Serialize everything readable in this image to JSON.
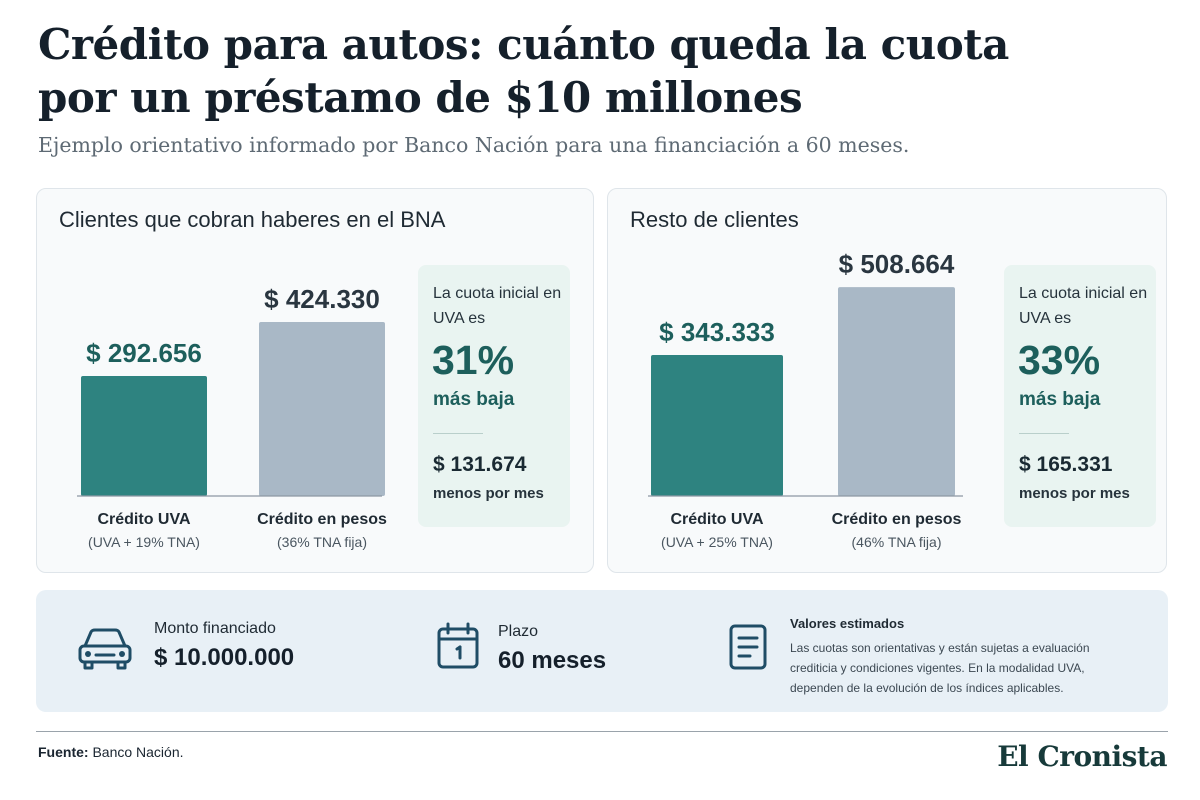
{
  "header": {
    "title_line1": "Crédito para autos: cuánto queda la cuota",
    "title_line2": "por un préstamo de $10 millones",
    "subtitle": "Ejemplo orientativo informado por Banco Nación para una financiación a 60 meses."
  },
  "chart_data": [
    {
      "type": "bar",
      "title": "Clientes que cobran haberes en el BNA",
      "categories": [
        "Crédito UVA",
        "Crédito en pesos"
      ],
      "category_notes": [
        "(UVA + 19% TNA)",
        "(36% TNA fija)"
      ],
      "values": [
        292656,
        424330
      ],
      "value_labels": [
        "$ 292.656",
        "$ 424.330"
      ],
      "colors": [
        "#2e8380",
        "#a9b8c6"
      ],
      "ylim": [
        0,
        500000
      ],
      "grid": false,
      "callout": {
        "intro": "La cuota inicial en UVA es",
        "percent": "31%",
        "percent_label": "más baja",
        "difference": "$ 131.674",
        "difference_label": "menos por mes"
      }
    },
    {
      "type": "bar",
      "title": "Resto de clientes",
      "categories": [
        "Crédito UVA",
        "Crédito en pesos"
      ],
      "category_notes": [
        "(UVA + 25% TNA)",
        "(46% TNA fija)"
      ],
      "values": [
        343333,
        508664
      ],
      "value_labels": [
        "$ 343.333",
        "$ 508.664"
      ],
      "colors": [
        "#2e8380",
        "#a9b8c6"
      ],
      "ylim": [
        0,
        600000
      ],
      "grid": false,
      "callout": {
        "intro": "La cuota inicial en UVA es",
        "percent": "33%",
        "percent_label": "más baja",
        "difference": "$ 165.331",
        "difference_label": "menos por mes"
      }
    }
  ],
  "info": {
    "amount": {
      "label": "Monto financiado",
      "value": "$ 10.000.000",
      "icon": "car-icon"
    },
    "term": {
      "label": "Plazo",
      "value": "60 meses",
      "icon": "calendar-icon"
    },
    "note": {
      "title": "Valores estimados",
      "text": "Las cuotas son orientativas y están sujetas a evaluación crediticia y condiciones vigentes. En la modalidad UVA, dependen de la evolución de los índices aplicables.",
      "icon": "document-icon"
    }
  },
  "footer": {
    "source_label": "Fuente:",
    "source_text": "Banco Nación.",
    "brand": "El Cronista"
  },
  "colors": {
    "accent": "#2e8380",
    "accent_dark": "#1d5f5c",
    "neutral_bar": "#a9b8c6",
    "info_bg": "#e8f0f6",
    "icon": "#1f4d66"
  }
}
